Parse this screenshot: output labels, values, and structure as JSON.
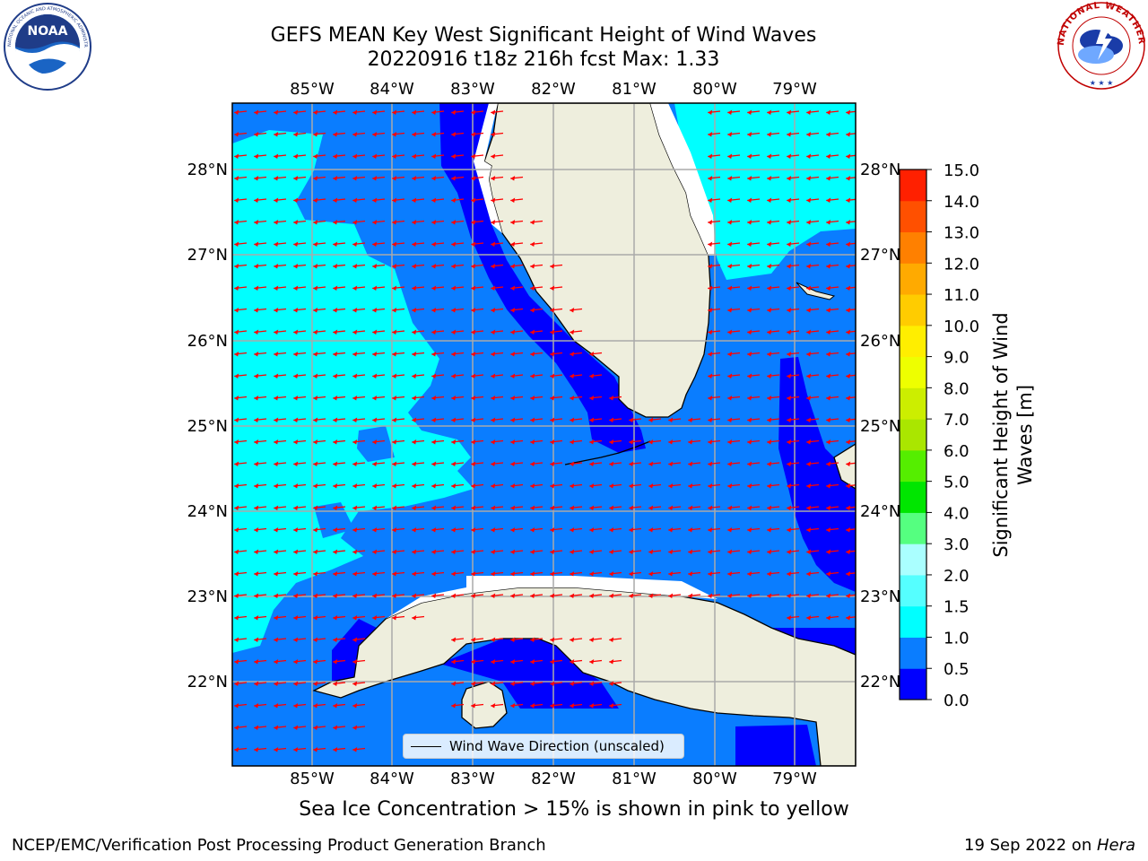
{
  "title": {
    "line1": "GEFS MEAN Key West Significant Height of Wind Waves",
    "line2": "20220916 t18z 216h fcst   Max: 1.33"
  },
  "logos": {
    "left": {
      "text": "NOAA",
      "ring_text": "NATIONAL OCEANIC AND ATMOSPHERIC ADMINISTRATION · U.S. DEPARTMENT OF COMMERCE"
    },
    "right": {
      "ring_text": "NATIONAL WEATHER SERVICE"
    }
  },
  "map": {
    "lon_ticks": [
      "85°W",
      "84°W",
      "83°W",
      "82°W",
      "81°W",
      "80°W",
      "79°W"
    ],
    "lat_ticks": [
      "28°N",
      "27°N",
      "26°N",
      "25°N",
      "24°N",
      "23°N",
      "22°N"
    ],
    "extent": {
      "lon_min": -86.0,
      "lon_max": -78.3,
      "lat_min": 21.0,
      "lat_max": 28.75
    },
    "colors": {
      "ocean_0_0.5": "#0000ff",
      "ocean_0.5_1.0": "#0a7dff",
      "ocean_1.0_1.5": "#00ffff",
      "land": "#eeeedd",
      "arrow": "#ff0000",
      "grid": "#aaaaaa"
    },
    "wind_wave_direction": "westward (toward west, slightly south)"
  },
  "legend": {
    "label": "Wind Wave Direction (unscaled)"
  },
  "colorbar": {
    "label_line1": "Significant Height of Wind",
    "label_line2": "Waves [m]",
    "ticks": [
      "0.0",
      "0.5",
      "1.0",
      "1.5",
      "2.0",
      "3.0",
      "4.0",
      "5.0",
      "6.0",
      "7.0",
      "8.0",
      "9.0",
      "10.0",
      "11.0",
      "12.0",
      "13.0",
      "14.0",
      "15.0"
    ],
    "colors": [
      "#0000ff",
      "#0a7dff",
      "#00ffff",
      "#55ffff",
      "#aaffff",
      "#55ff80",
      "#00e600",
      "#55ee00",
      "#aae600",
      "#ccee00",
      "#eeff00",
      "#ffee00",
      "#ffcc00",
      "#ffaa00",
      "#ff8000",
      "#ff5000",
      "#ff2000"
    ]
  },
  "note": "Sea Ice Concentration > 15% is shown in pink to yellow",
  "footer": {
    "left": "NCEP/EMC/Verification Post Processing Product Generation Branch",
    "right_prefix": "19 Sep 2022 on ",
    "right_host": "Hera"
  }
}
